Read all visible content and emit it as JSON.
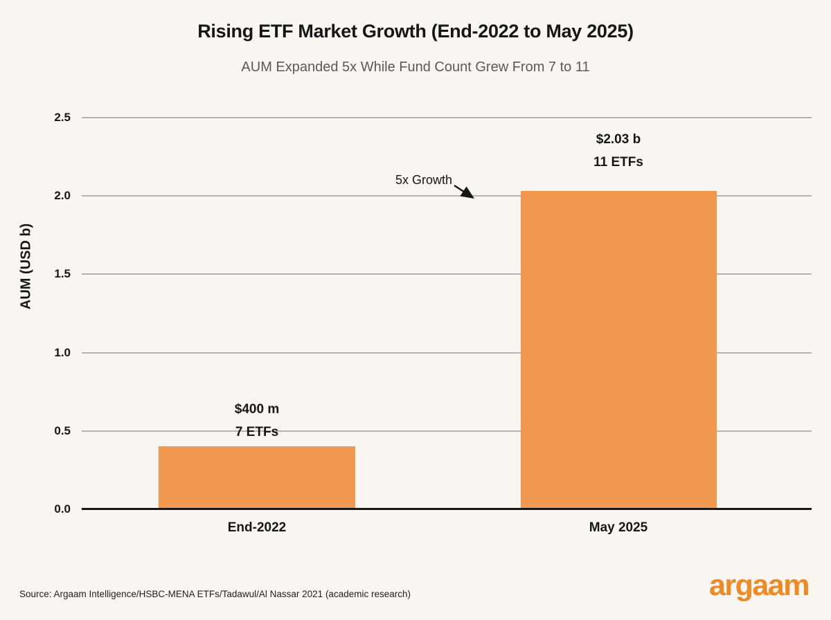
{
  "chart_data": {
    "type": "bar",
    "title": "Rising ETF Market Growth (End-2022 to May 2025)",
    "subtitle": "AUM Expanded 5x While Fund Count Grew From 7 to 11",
    "xlabel": "",
    "ylabel": "AUM (USD b)",
    "ylim": [
      0,
      2.5
    ],
    "yticks": [
      0.0,
      0.5,
      1.0,
      1.5,
      2.0,
      2.5
    ],
    "ytick_labels": [
      "0.0",
      "0.5",
      "1.0",
      "1.5",
      "2.0",
      "2.5"
    ],
    "grid": true,
    "legend_position": "none",
    "categories": [
      "End-2022",
      "May 2025"
    ],
    "values": [
      0.4,
      2.03
    ],
    "bar_labels": [
      [
        "$400 m",
        "7 ETFs"
      ],
      [
        "$2.03 b",
        "11 ETFs"
      ]
    ],
    "annotation": {
      "text": "5x Growth",
      "target": "top of May 2025 bar near 2.0 gridline"
    },
    "bar_color": "#F09850"
  },
  "footer": {
    "source": "Source: Argaam Intelligence/HSBC-MENA ETFs/Tadawul/Al Nassar 2021 (academic research)",
    "logo_text": "argaam"
  },
  "colors": {
    "background": "#F9F5F1",
    "bar": "#F09850",
    "logo": "#EE8A23",
    "gridline": "#B7B3B0",
    "axis": "#161616",
    "title_text": "#161616",
    "subtitle_text": "#595959"
  }
}
